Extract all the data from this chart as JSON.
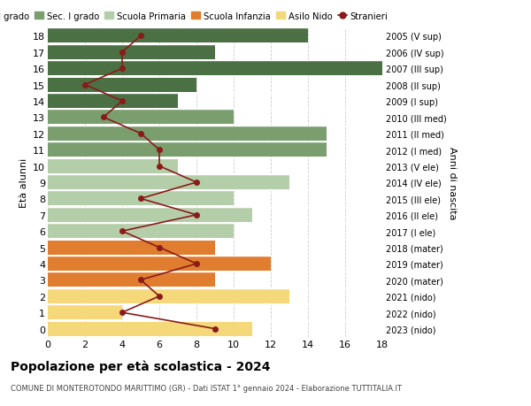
{
  "ages": [
    18,
    17,
    16,
    15,
    14,
    13,
    12,
    11,
    10,
    9,
    8,
    7,
    6,
    5,
    4,
    3,
    2,
    1,
    0
  ],
  "years": [
    "2005 (V sup)",
    "2006 (IV sup)",
    "2007 (III sup)",
    "2008 (II sup)",
    "2009 (I sup)",
    "2010 (III med)",
    "2011 (II med)",
    "2012 (I med)",
    "2013 (V ele)",
    "2014 (IV ele)",
    "2015 (III ele)",
    "2016 (II ele)",
    "2017 (I ele)",
    "2018 (mater)",
    "2019 (mater)",
    "2020 (mater)",
    "2021 (nido)",
    "2022 (nido)",
    "2023 (nido)"
  ],
  "bar_values": [
    14,
    9,
    18,
    8,
    7,
    10,
    15,
    15,
    7,
    13,
    10,
    11,
    10,
    9,
    12,
    9,
    13,
    4,
    11
  ],
  "bar_colors": [
    "#4a7043",
    "#4a7043",
    "#4a7043",
    "#4a7043",
    "#4a7043",
    "#7a9e6e",
    "#7a9e6e",
    "#7a9e6e",
    "#b5ceaa",
    "#b5ceaa",
    "#b5ceaa",
    "#b5ceaa",
    "#b5ceaa",
    "#e07d2e",
    "#e07d2e",
    "#e07d2e",
    "#f5d87a",
    "#f5d87a",
    "#f5d87a"
  ],
  "stranieri_values": [
    5,
    4,
    4,
    2,
    4,
    3,
    5,
    6,
    6,
    8,
    5,
    8,
    4,
    6,
    8,
    5,
    6,
    4,
    9
  ],
  "stranieri_color": "#8b1a1a",
  "title": "Popolazione per età scolastica - 2024",
  "subtitle": "COMUNE DI MONTEROTONDO MARITTIMO (GR) - Dati ISTAT 1° gennaio 2024 - Elaborazione TUTTITALIA.IT",
  "ylabel_left": "Età alunni",
  "ylabel_right": "Anni di nascita",
  "xlim": [
    0,
    18
  ],
  "legend_labels": [
    "Sec. II grado",
    "Sec. I grado",
    "Scuola Primaria",
    "Scuola Infanzia",
    "Asilo Nido",
    "Stranieri"
  ],
  "legend_colors": [
    "#4a7043",
    "#7a9e6e",
    "#b5ceaa",
    "#e07d2e",
    "#f5d87a",
    "#8b1a1a"
  ],
  "bg_color": "#ffffff",
  "grid_color": "#cccccc"
}
